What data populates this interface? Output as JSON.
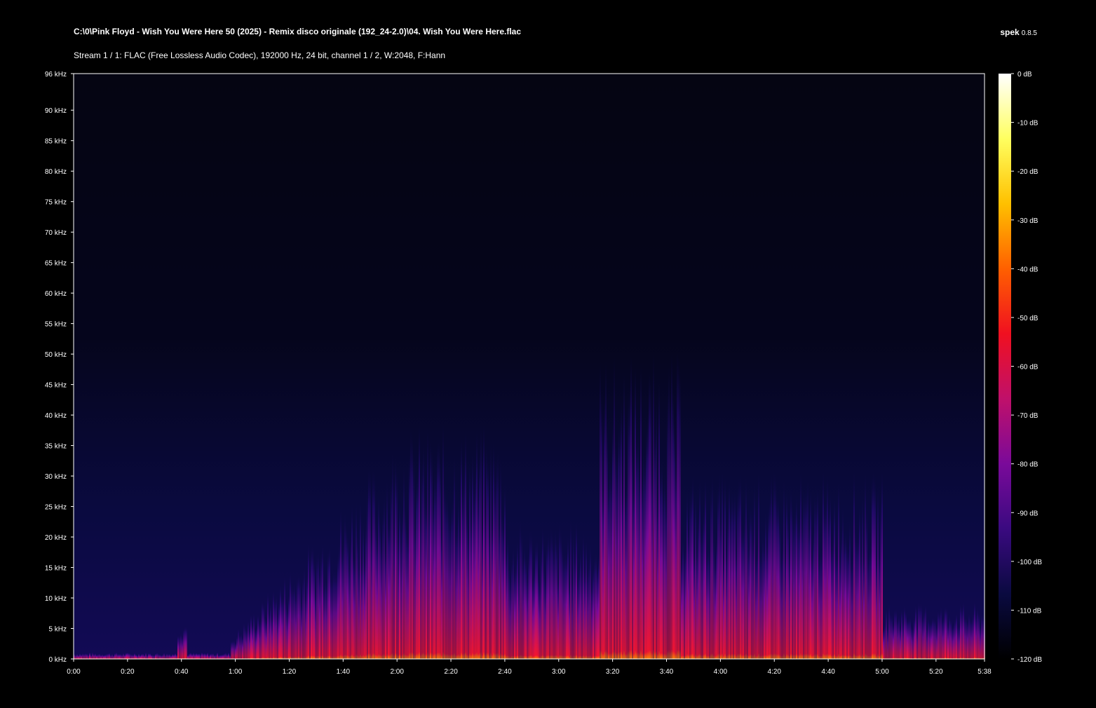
{
  "header": {
    "file_path": "C:\\0\\Pink Floyd - Wish You Were Here 50 (2025) - Remix disco originale (192_24-2.0)\\04. Wish You Were Here.flac",
    "app_name": "spek",
    "app_version": "0.8.5",
    "stream_info": "Stream 1 / 1: FLAC (Free Lossless Audio Codec), 192000 Hz, 24 bit, channel 1 / 2, W:2048, F:Hann"
  },
  "chart_data": {
    "type": "heatmap",
    "x_axis": {
      "unit": "seconds",
      "range": [
        0,
        338
      ],
      "ticks": [
        {
          "value": 0,
          "label": "0:00"
        },
        {
          "value": 20,
          "label": "0:20"
        },
        {
          "value": 40,
          "label": "0:40"
        },
        {
          "value": 60,
          "label": "1:00"
        },
        {
          "value": 80,
          "label": "1:20"
        },
        {
          "value": 100,
          "label": "1:40"
        },
        {
          "value": 120,
          "label": "2:00"
        },
        {
          "value": 140,
          "label": "2:20"
        },
        {
          "value": 160,
          "label": "2:40"
        },
        {
          "value": 180,
          "label": "3:00"
        },
        {
          "value": 200,
          "label": "3:20"
        },
        {
          "value": 220,
          "label": "3:40"
        },
        {
          "value": 240,
          "label": "4:00"
        },
        {
          "value": 260,
          "label": "4:20"
        },
        {
          "value": 280,
          "label": "4:40"
        },
        {
          "value": 300,
          "label": "5:00"
        },
        {
          "value": 320,
          "label": "5:20"
        },
        {
          "value": 338,
          "label": "5:38"
        }
      ]
    },
    "y_axis": {
      "unit": "kHz",
      "range": [
        0,
        96
      ],
      "ticks": [
        {
          "value": 0,
          "label": "0 kHz"
        },
        {
          "value": 5,
          "label": "5 kHz"
        },
        {
          "value": 10,
          "label": "10 kHz"
        },
        {
          "value": 15,
          "label": "15 kHz"
        },
        {
          "value": 20,
          "label": "20 kHz"
        },
        {
          "value": 25,
          "label": "25 kHz"
        },
        {
          "value": 30,
          "label": "30 kHz"
        },
        {
          "value": 35,
          "label": "35 kHz"
        },
        {
          "value": 40,
          "label": "40 kHz"
        },
        {
          "value": 45,
          "label": "45 kHz"
        },
        {
          "value": 50,
          "label": "50 kHz"
        },
        {
          "value": 55,
          "label": "55 kHz"
        },
        {
          "value": 60,
          "label": "60 kHz"
        },
        {
          "value": 65,
          "label": "65 kHz"
        },
        {
          "value": 70,
          "label": "70 kHz"
        },
        {
          "value": 75,
          "label": "75 kHz"
        },
        {
          "value": 80,
          "label": "80 kHz"
        },
        {
          "value": 85,
          "label": "85 kHz"
        },
        {
          "value": 90,
          "label": "90 kHz"
        },
        {
          "value": 96,
          "label": "96 kHz"
        }
      ]
    },
    "color_scale": {
      "unit": "dB",
      "range": [
        -120,
        0
      ],
      "ticks": [
        {
          "value": 0,
          "label": "0 dB"
        },
        {
          "value": -10,
          "label": "-10 dB"
        },
        {
          "value": -20,
          "label": "-20 dB"
        },
        {
          "value": -30,
          "label": "-30 dB"
        },
        {
          "value": -40,
          "label": "-40 dB"
        },
        {
          "value": -50,
          "label": "-50 dB"
        },
        {
          "value": -60,
          "label": "-60 dB"
        },
        {
          "value": -70,
          "label": "-70 dB"
        },
        {
          "value": -80,
          "label": "-80 dB"
        },
        {
          "value": -90,
          "label": "-90 dB"
        },
        {
          "value": -100,
          "label": "-100 dB"
        },
        {
          "value": -110,
          "label": "-110 dB"
        },
        {
          "value": -120,
          "label": "-120 dB"
        }
      ],
      "colors": [
        "#000000",
        "#0a0a40",
        "#3a0a80",
        "#7a0a9a",
        "#c0106a",
        "#f01020",
        "#ff6000",
        "#ffc000",
        "#ffff60",
        "#ffffff"
      ]
    }
  }
}
